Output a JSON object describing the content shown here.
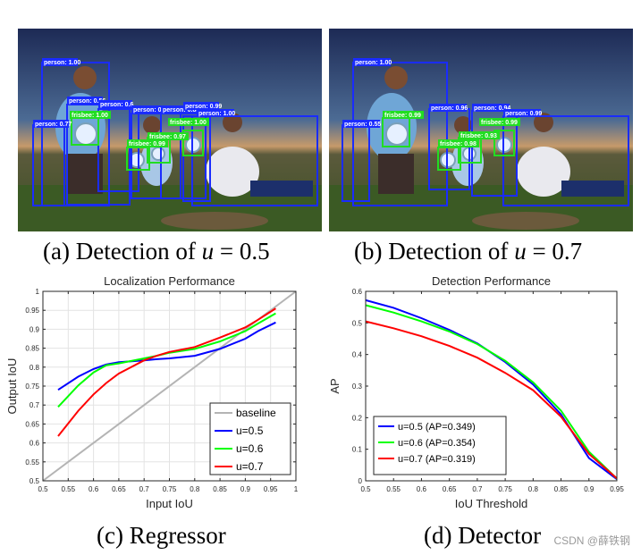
{
  "figure_a": {
    "caption_prefix": "(a) Detection of ",
    "caption_var": "u",
    "caption_suffix": " = 0.5",
    "labels": [
      "person: 1.00",
      "person: 0.56",
      "person: 0.6",
      "person: 0.77",
      "person: 0.64",
      "person: 0.83",
      "person: 0.99",
      "person: 1.00",
      "frisbee: 1.00",
      "frisbee: 1.00",
      "frisbee: 0.97",
      "frisbee: 0.99"
    ]
  },
  "figure_b": {
    "caption_prefix": "(b) Detection of ",
    "caption_var": "u",
    "caption_suffix": " = 0.7",
    "labels": [
      "person: 1.00",
      "person: 0.55",
      "person: 0.96",
      "person: 0.94",
      "person: 0.99",
      "frisbee: 0.99",
      "frisbee: 0.99",
      "frisbee: 0.93",
      "frisbee: 0.98"
    ]
  },
  "caption_c": "(c) Regressor",
  "caption_d": "(d) Detector",
  "watermark": "CSDN @薛铁钢",
  "colors": {
    "blue": "#0000ff",
    "green": "#00ff00",
    "red": "#ff0000",
    "gray": "#b4b4b4",
    "box_blue": "#1a2cff",
    "box_green": "#22dd22"
  },
  "chart_data": [
    {
      "type": "line",
      "title": "Localization Performance",
      "xlabel": "Input IoU",
      "ylabel": "Output IoU",
      "xlim": [
        0.5,
        1
      ],
      "ylim": [
        0.5,
        1
      ],
      "xticks": [
        "0.5",
        "0.55",
        "0.6",
        "0.65",
        "0.7",
        "0.75",
        "0.8",
        "0.85",
        "0.9",
        "0.95",
        "1"
      ],
      "yticks": [
        "0.5",
        "0.55",
        "0.6",
        "0.65",
        "0.7",
        "0.75",
        "0.8",
        "0.85",
        "0.9",
        "0.95",
        "1"
      ],
      "legend_position": "bottom-right",
      "grid": true,
      "series": [
        {
          "name": "baseline",
          "color": "#b4b4b4",
          "x": [
            0.5,
            1.0
          ],
          "y": [
            0.5,
            1.0
          ]
        },
        {
          "name": "u=0.5",
          "color": "#0000ff",
          "x": [
            0.53,
            0.57,
            0.6,
            0.625,
            0.65,
            0.7,
            0.725,
            0.75,
            0.8,
            0.85,
            0.9,
            0.925,
            0.96
          ],
          "y": [
            0.74,
            0.775,
            0.795,
            0.807,
            0.813,
            0.818,
            0.821,
            0.823,
            0.83,
            0.848,
            0.875,
            0.895,
            0.918
          ]
        },
        {
          "name": "u=0.6",
          "color": "#00ff00",
          "x": [
            0.53,
            0.57,
            0.6,
            0.625,
            0.65,
            0.7,
            0.725,
            0.75,
            0.8,
            0.85,
            0.9,
            0.925,
            0.96
          ],
          "y": [
            0.695,
            0.752,
            0.786,
            0.805,
            0.81,
            0.823,
            0.83,
            0.838,
            0.848,
            0.868,
            0.895,
            0.915,
            0.942
          ]
        },
        {
          "name": "u=0.7",
          "color": "#ff0000",
          "x": [
            0.53,
            0.57,
            0.6,
            0.625,
            0.65,
            0.7,
            0.725,
            0.75,
            0.8,
            0.85,
            0.9,
            0.925,
            0.96
          ],
          "y": [
            0.618,
            0.685,
            0.728,
            0.758,
            0.783,
            0.818,
            0.83,
            0.84,
            0.853,
            0.878,
            0.905,
            0.925,
            0.955
          ]
        }
      ]
    },
    {
      "type": "line",
      "title": "Detection Performance",
      "xlabel": "IoU Threshold",
      "ylabel": "AP",
      "xlim": [
        0.5,
        0.95
      ],
      "ylim": [
        0,
        0.6
      ],
      "xticks": [
        "0.5",
        "0.55",
        "0.6",
        "0.65",
        "0.7",
        "0.75",
        "0.8",
        "0.85",
        "0.9",
        "0.95"
      ],
      "yticks": [
        "0",
        "0.1",
        "0.2",
        "0.3",
        "0.4",
        "0.5",
        "0.6"
      ],
      "legend_position": "bottom-left",
      "grid": false,
      "series": [
        {
          "name": "u=0.5 (AP=0.349)",
          "color": "#0000ff",
          "x": [
            0.5,
            0.55,
            0.6,
            0.65,
            0.7,
            0.75,
            0.8,
            0.85,
            0.9,
            0.95
          ],
          "y": [
            0.572,
            0.548,
            0.515,
            0.478,
            0.435,
            0.376,
            0.305,
            0.21,
            0.072,
            0.005
          ]
        },
        {
          "name": "u=0.6 (AP=0.354)",
          "color": "#00ff00",
          "x": [
            0.5,
            0.55,
            0.6,
            0.65,
            0.7,
            0.75,
            0.8,
            0.85,
            0.9,
            0.95
          ],
          "y": [
            0.556,
            0.533,
            0.505,
            0.473,
            0.433,
            0.38,
            0.312,
            0.222,
            0.092,
            0.007
          ]
        },
        {
          "name": "u=0.7 (AP=0.319)",
          "color": "#ff0000",
          "x": [
            0.5,
            0.55,
            0.6,
            0.65,
            0.7,
            0.75,
            0.8,
            0.85,
            0.9,
            0.95
          ],
          "y": [
            0.505,
            0.483,
            0.458,
            0.427,
            0.39,
            0.342,
            0.287,
            0.203,
            0.085,
            0.008
          ]
        }
      ]
    }
  ]
}
